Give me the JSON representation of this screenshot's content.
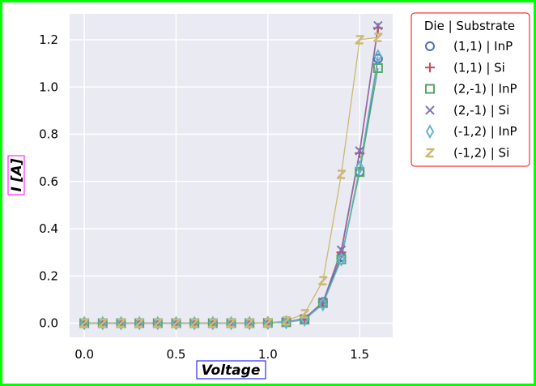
{
  "chart_data": {
    "type": "line",
    "xlabel": "Voltage",
    "ylabel": "I [A]",
    "xlim": [
      -0.08,
      1.68
    ],
    "ylim": [
      -0.06,
      1.31
    ],
    "xticks": [
      "0.0",
      "0.5",
      "1.0",
      "1.5"
    ],
    "yticks": [
      "0.0",
      "0.2",
      "0.4",
      "0.6",
      "0.8",
      "1.0",
      "1.2"
    ],
    "grid": true,
    "legend_title": "Die | Substrate",
    "legend_position": "outside-top-right",
    "x": [
      0.0,
      0.1,
      0.2,
      0.3,
      0.4,
      0.5,
      0.6,
      0.7,
      0.8,
      0.9,
      1.0,
      1.1,
      1.2,
      1.3,
      1.4,
      1.5,
      1.6
    ],
    "series": [
      {
        "name": "(1,1) | InP",
        "color": "#4c72b0",
        "marker": "circle",
        "values": [
          0,
          0,
          0,
          0,
          0,
          0,
          0,
          0,
          0,
          0,
          0.001,
          0.004,
          0.015,
          0.09,
          0.28,
          0.64,
          1.12
        ]
      },
      {
        "name": "(1,1) | Si",
        "color": "#c44e52",
        "marker": "plus",
        "values": [
          0,
          0,
          0,
          0,
          0,
          0,
          0,
          0,
          0,
          0,
          0.001,
          0.005,
          0.02,
          0.09,
          0.3,
          0.72,
          1.25
        ]
      },
      {
        "name": "(2,-1) | InP",
        "color": "#55a868",
        "marker": "square",
        "values": [
          0,
          0,
          0,
          0,
          0,
          0,
          0,
          0,
          0,
          0,
          0.001,
          0.004,
          0.015,
          0.085,
          0.27,
          0.64,
          1.08
        ]
      },
      {
        "name": "(2,-1) | Si",
        "color": "#8172b2",
        "marker": "x",
        "values": [
          0,
          0,
          0,
          0,
          0,
          0,
          0,
          0,
          0,
          0,
          0.001,
          0.005,
          0.02,
          0.09,
          0.31,
          0.73,
          1.26
        ]
      },
      {
        "name": "(-1,2) | InP",
        "color": "#64b5cd",
        "marker": "thin_diamond",
        "values": [
          0,
          0,
          0,
          0,
          0,
          0,
          0,
          0,
          0,
          0,
          0.001,
          0.004,
          0.015,
          0.08,
          0.27,
          0.66,
          1.13
        ]
      },
      {
        "name": "(-1,2) | Si",
        "color": "#ccb974",
        "marker": "z",
        "values": [
          0,
          0,
          0,
          0,
          0,
          0,
          0,
          0,
          0,
          0,
          0.002,
          0.01,
          0.04,
          0.18,
          0.63,
          1.2,
          1.21
        ]
      }
    ]
  }
}
